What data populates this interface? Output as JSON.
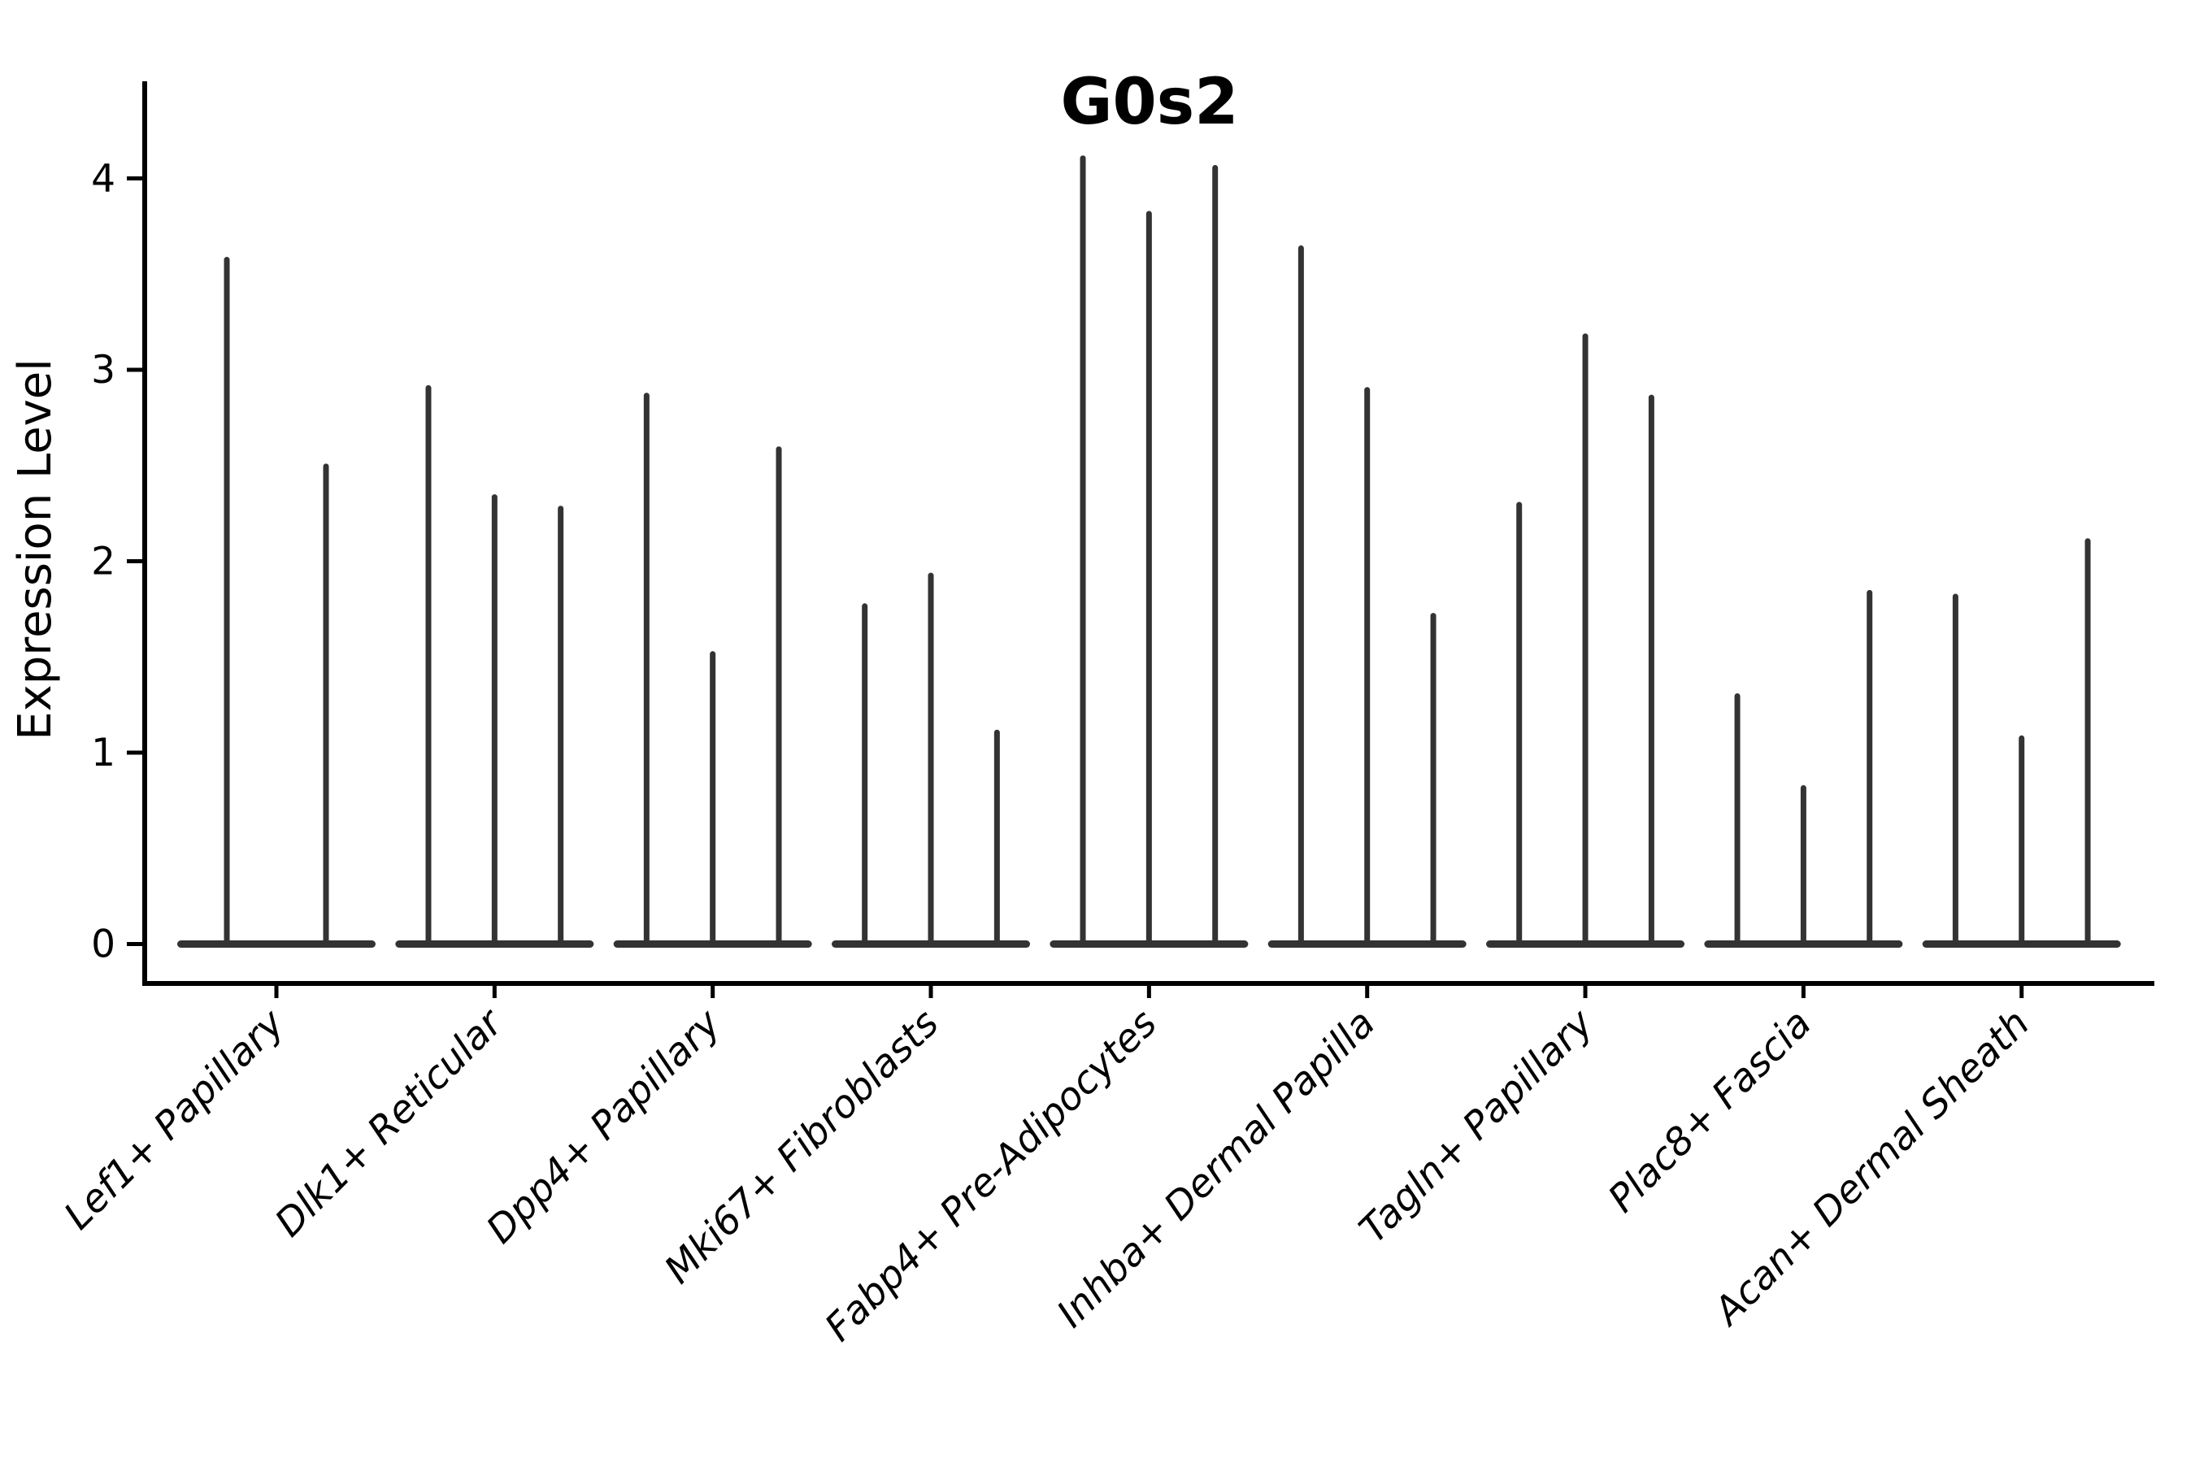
{
  "chart_data": {
    "type": "violin",
    "title": "G0s2",
    "ylabel": "Expression Level",
    "xlabel": "",
    "ytick_labels": [
      "0",
      "1",
      "2",
      "3",
      "4"
    ],
    "ytick_values": [
      0,
      1,
      2,
      3,
      4
    ],
    "ylim": [
      0,
      4.47
    ],
    "grid": false,
    "legend_position": "none",
    "violin_color": "#333333",
    "axis_color": "#000000",
    "categories": [
      "Lef1+ Papillary",
      "Dlk1+ Reticular",
      "Dpp4+ Papillary",
      "Mki67+ Fibroblasts",
      "Fabp4+ Pre-Adipocytes",
      "Inhba+ Dermal Papilla",
      "Tagln+ Papillary",
      "Plac8+ Fascia",
      "Acan+ Dermal Sheath"
    ],
    "groups": [
      {
        "label": "Lef1+ Papillary",
        "violin_maxima": [
          3.59,
          2.51
        ]
      },
      {
        "label": "Dlk1+ Reticular",
        "violin_maxima": [
          2.92,
          2.35,
          2.29
        ]
      },
      {
        "label": "Dpp4+ Papillary",
        "violin_maxima": [
          2.88,
          1.53,
          2.6
        ]
      },
      {
        "label": "Mki67+ Fibroblasts",
        "violin_maxima": [
          1.78,
          1.94,
          1.12
        ]
      },
      {
        "label": "Fabp4+ Pre-Adipocytes",
        "violin_maxima": [
          4.12,
          3.83,
          4.07
        ]
      },
      {
        "label": "Inhba+ Dermal Papilla",
        "violin_maxima": [
          3.65,
          2.91,
          1.73
        ]
      },
      {
        "label": "Tagln+ Papillary",
        "violin_maxima": [
          2.31,
          3.19,
          2.87
        ]
      },
      {
        "label": "Plac8+ Fascia",
        "violin_maxima": [
          1.31,
          0.83,
          1.85
        ]
      },
      {
        "label": "Acan+ Dermal Sheath",
        "violin_maxima": [
          1.83,
          1.09,
          2.12
        ]
      }
    ]
  }
}
